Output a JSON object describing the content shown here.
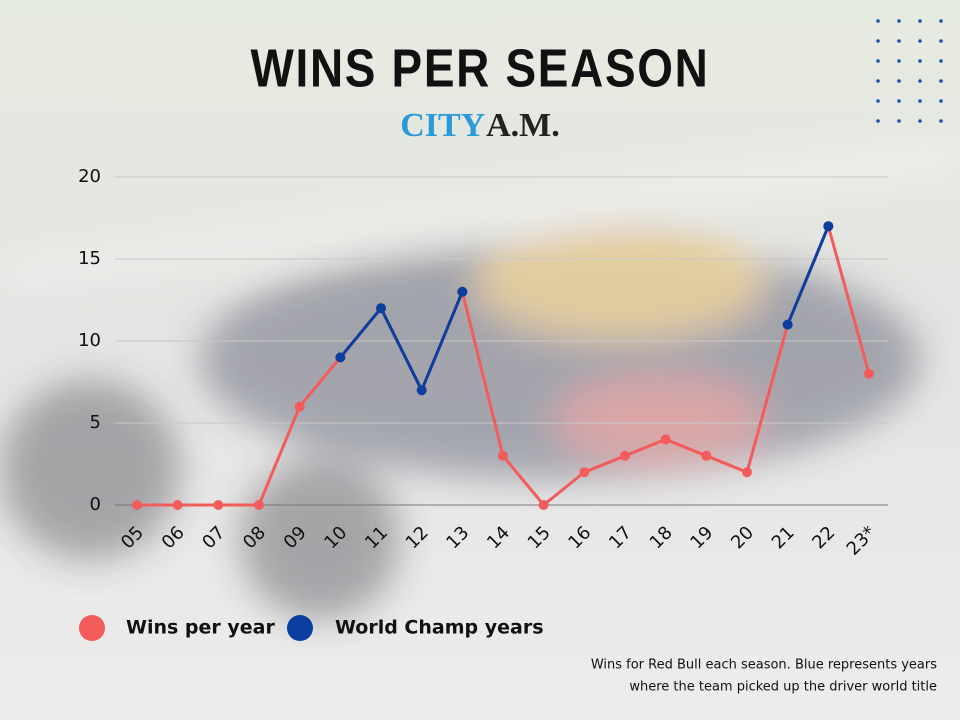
{
  "chart_data": {
    "type": "line",
    "title": "WINS PER SEASON",
    "logo": [
      "CITY",
      "A.M."
    ],
    "categories": [
      "05",
      "06",
      "07",
      "08",
      "09",
      "10",
      "11",
      "12",
      "13",
      "14",
      "15",
      "16",
      "17",
      "18",
      "19",
      "20",
      "21",
      "22",
      "23*"
    ],
    "series": [
      {
        "name": "Wins per year",
        "color": "#f45b5b",
        "values": [
          0,
          0,
          0,
          0,
          6,
          9,
          12,
          7,
          13,
          3,
          0,
          2,
          3,
          4,
          3,
          2,
          11,
          17,
          8
        ]
      },
      {
        "name": "World Champ years",
        "color": "#0a3fa0",
        "values": [
          null,
          null,
          null,
          null,
          null,
          9,
          12,
          7,
          13,
          null,
          null,
          null,
          null,
          null,
          null,
          null,
          11,
          17,
          null
        ]
      }
    ],
    "ylim": [
      0,
      20
    ],
    "yticks": [
      0,
      5,
      10,
      15,
      20
    ],
    "grid": true,
    "note": [
      "Wins for Red Bull each season. Blue represents years",
      "where the team picked up the driver world title"
    ]
  }
}
